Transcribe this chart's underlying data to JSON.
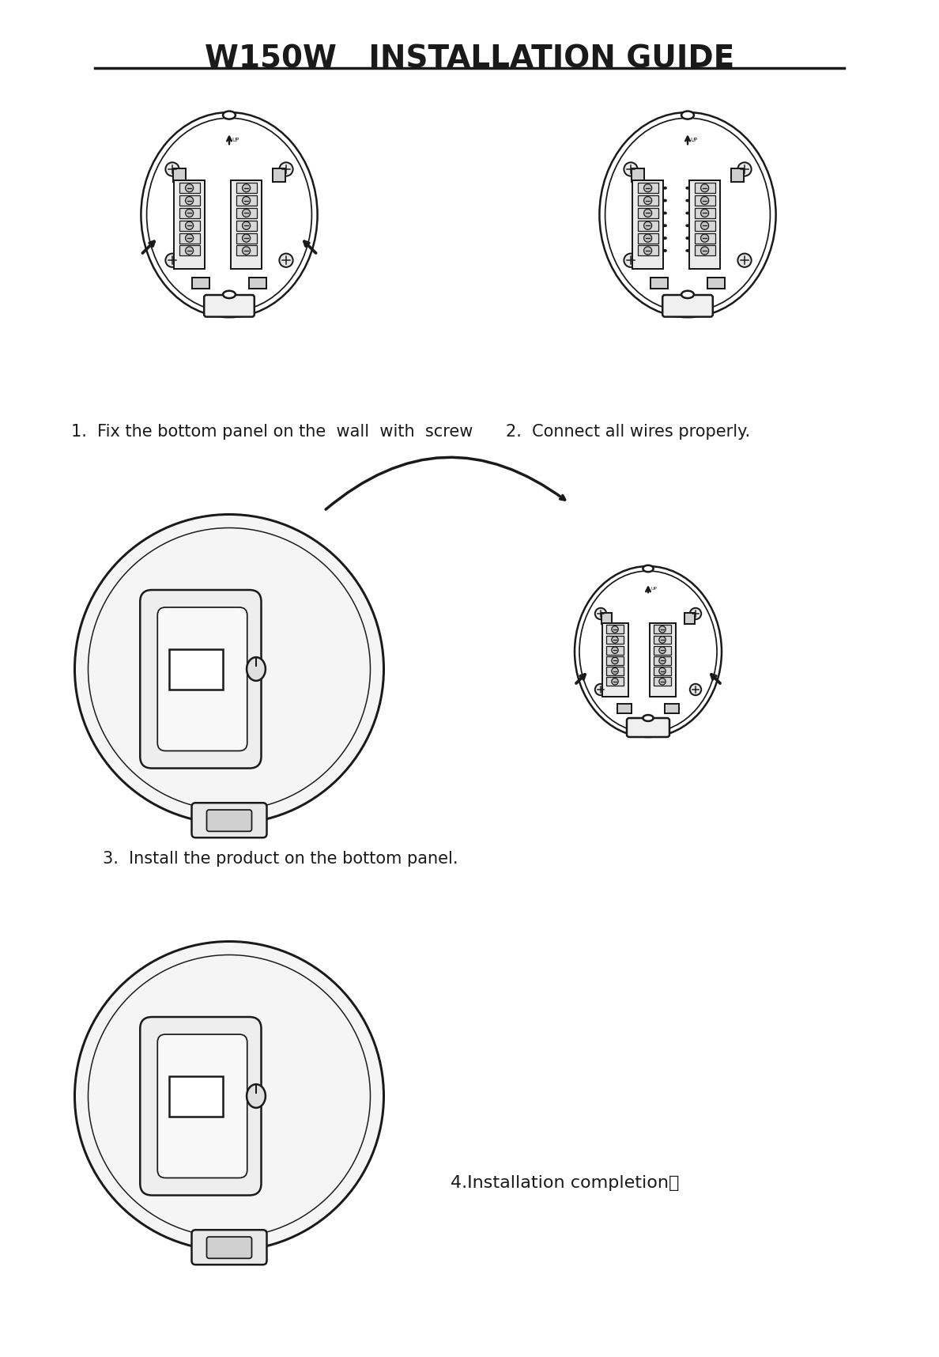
{
  "title": "W150W   INSTALLATION GUIDE",
  "step1_label": "1.  Fix the bottom panel on the  wall  with  screw",
  "step2_label": "2.  Connect all wires properly.",
  "step3_label": "3.  Install the product on the bottom panel.",
  "step4_label": "4.Installation completion；",
  "bg_color": "#ffffff",
  "line_color": "#1a1a1a",
  "title_fontsize": 28,
  "step_fontsize": 15
}
